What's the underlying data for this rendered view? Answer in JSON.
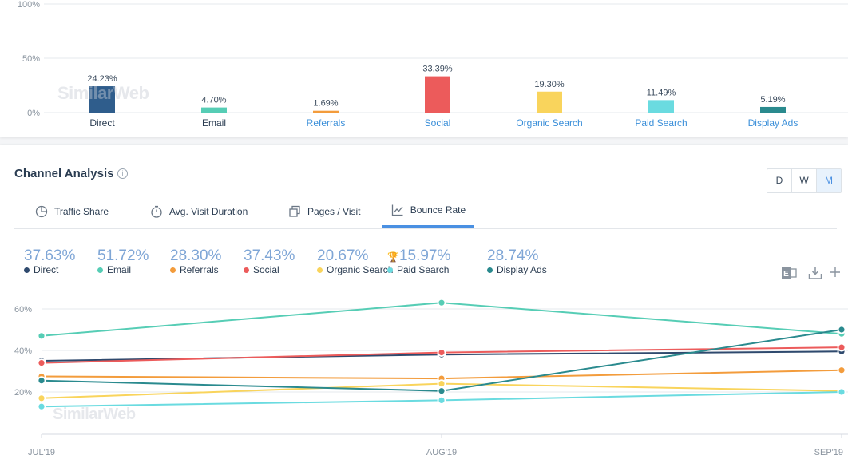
{
  "share_chart": {
    "yticks": [
      "100%",
      "50%",
      "0%"
    ],
    "watermark": "SimilarWeb",
    "bars": [
      {
        "label": "Direct",
        "value": 24.23,
        "value_label": "24.23%",
        "color": "#2f5d8c",
        "link": false
      },
      {
        "label": "Email",
        "value": 4.7,
        "value_label": "4.70%",
        "color": "#56cdb5",
        "link": false
      },
      {
        "label": "Referrals",
        "value": 1.69,
        "value_label": "1.69%",
        "color": "#f39c3c",
        "link": true
      },
      {
        "label": "Social",
        "value": 33.39,
        "value_label": "33.39%",
        "color": "#ec5b5b",
        "link": true
      },
      {
        "label": "Organic Search",
        "value": 19.3,
        "value_label": "19.30%",
        "color": "#f9d45c",
        "link": true
      },
      {
        "label": "Paid Search",
        "value": 11.49,
        "value_label": "11.49%",
        "color": "#6adbe0",
        "link": true
      },
      {
        "label": "Display Ads",
        "value": 5.19,
        "value_label": "5.19%",
        "color": "#2a8a8e",
        "link": true
      }
    ]
  },
  "channel": {
    "title": "Channel Analysis",
    "info": "i",
    "granularity": [
      "D",
      "W",
      "M"
    ],
    "tabs": [
      "Traffic Share",
      "Avg. Visit Duration",
      "Pages / Visit",
      "Bounce Rate"
    ],
    "legend": [
      {
        "value": "37.63%",
        "label": "Direct",
        "color": "#2f4a6e"
      },
      {
        "value": "51.72%",
        "label": "Email",
        "color": "#56cdb5"
      },
      {
        "value": "28.30%",
        "label": "Referrals",
        "color": "#f39c3c"
      },
      {
        "value": "37.43%",
        "label": "Social",
        "color": "#ec5b5b"
      },
      {
        "value": "20.67%",
        "label": "Organic Search",
        "color": "#f9d45c"
      },
      {
        "value": "15.97%",
        "label": "Paid Search",
        "color": "#6adbe0",
        "trophy": true
      },
      {
        "value": "28.74%",
        "label": "Display Ads",
        "color": "#2a8a8e"
      }
    ],
    "watermark": "SimilarWeb"
  },
  "chart_data": {
    "type": "line",
    "x": [
      "JUL'19",
      "AUG'19",
      "SEP'19"
    ],
    "yticks": [
      "60%",
      "40%",
      "20%"
    ],
    "ylim": [
      0,
      70
    ],
    "series": [
      {
        "name": "Direct",
        "color": "#2f4a6e",
        "values": [
          35,
          38,
          39.5
        ]
      },
      {
        "name": "Email",
        "color": "#56cdb5",
        "values": [
          47,
          63,
          48
        ]
      },
      {
        "name": "Referrals",
        "color": "#f39c3c",
        "values": [
          27.5,
          26.5,
          30.5
        ]
      },
      {
        "name": "Social",
        "color": "#ec5b5b",
        "values": [
          34,
          39,
          41.5
        ]
      },
      {
        "name": "Organic Search",
        "color": "#f9d45c",
        "values": [
          17,
          24,
          20.5
        ]
      },
      {
        "name": "Paid Search",
        "color": "#6adbe0",
        "values": [
          13,
          16,
          20
        ]
      },
      {
        "name": "Display Ads",
        "color": "#2a8a8e",
        "values": [
          25.5,
          20.5,
          50
        ]
      }
    ]
  }
}
